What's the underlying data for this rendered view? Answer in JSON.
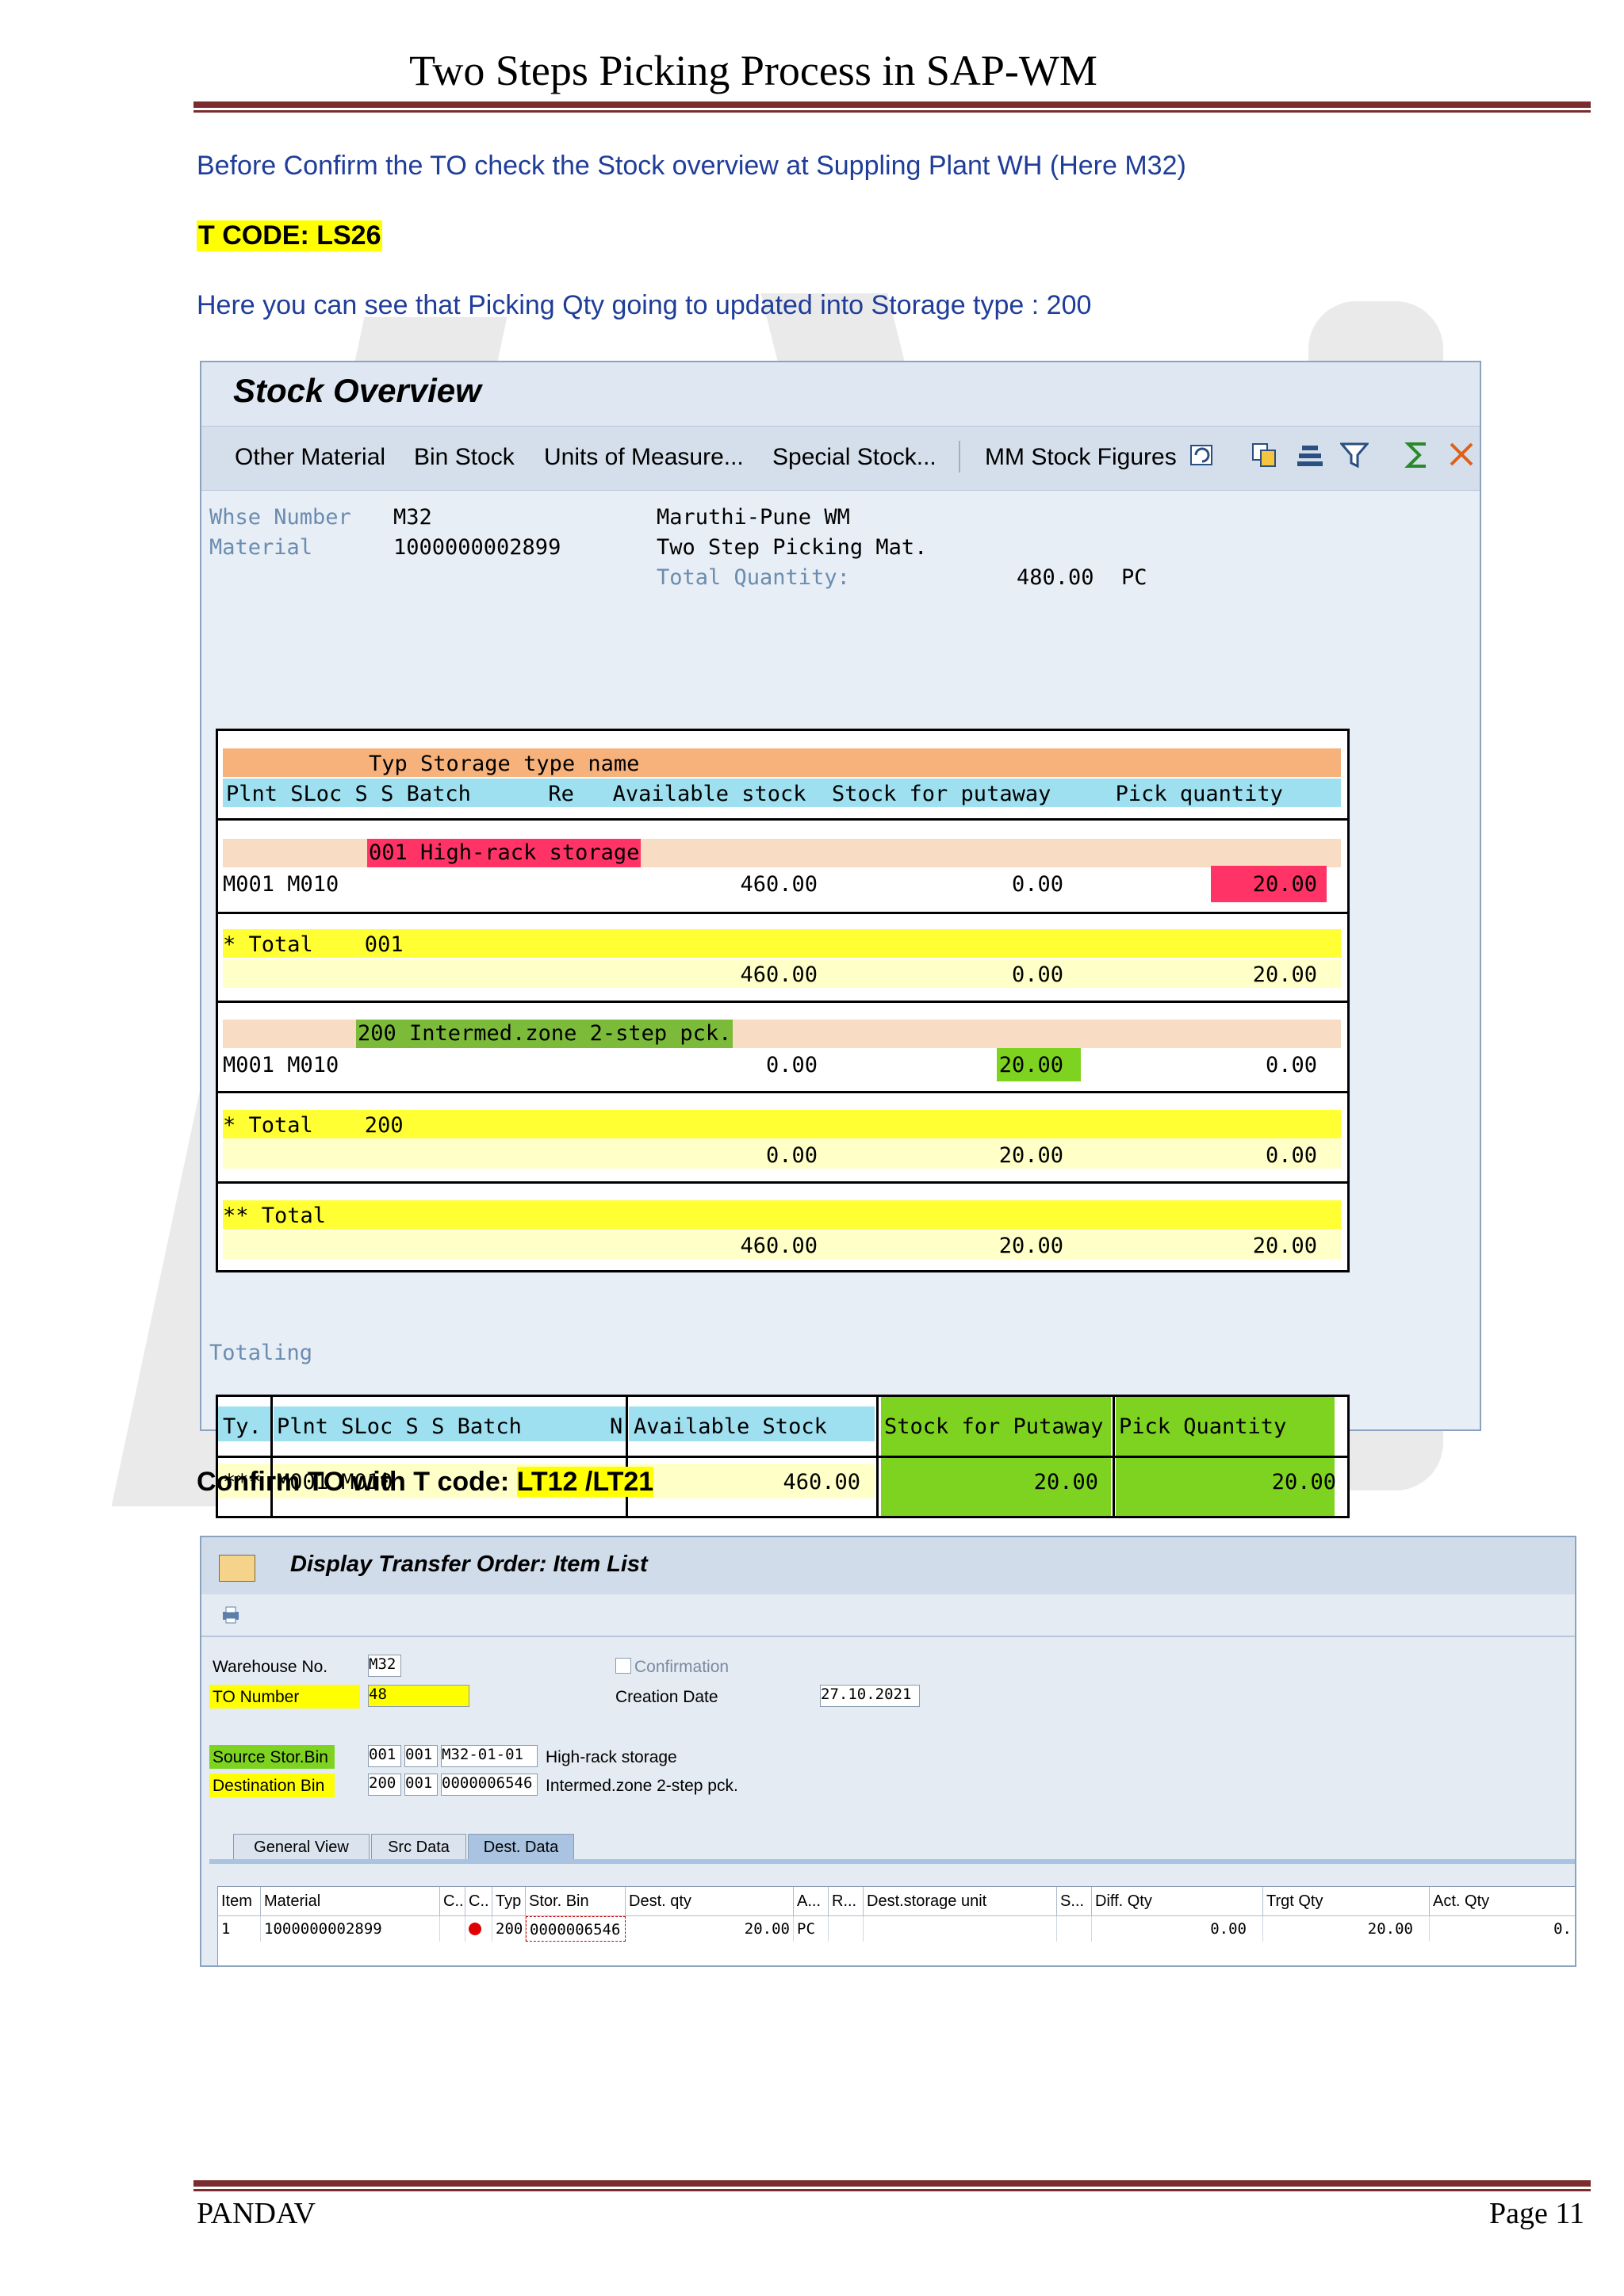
{
  "doc": {
    "title": "Two Steps Picking Process in SAP-WM",
    "intro": "Before Confirm the TO check the Stock overview at Suppling Plant WH (Here M32)",
    "tcode": "T CODE: LS26",
    "note": "Here you can see that Picking Qty going to updated into Storage type : 200",
    "confirm_prefix": "Confirm TO with T code: ",
    "confirm_codes": "LT12 /LT21"
  },
  "stock_overview": {
    "title": "Stock Overview",
    "toolbar": [
      "Other Material",
      "Bin Stock",
      "Units of Measure...",
      "Special Stock...",
      "MM Stock Figures"
    ],
    "whse_label": "Whse Number",
    "whse_value": "M32",
    "whse_desc": "Maruthi-Pune WM",
    "material_label": "Material",
    "material_value": "1000000002899",
    "material_desc": "Two Step Picking Mat.",
    "total_qty_label": "Total Quantity:",
    "total_qty_value": "480.00",
    "total_qty_unit": "PC",
    "header1": "Typ Storage type name",
    "header2": "Plnt SLoc S S Batch      Re   Available stock  Stock for putaway     Pick quantity",
    "rows": {
      "st001_name": "001 High-rack storage",
      "st001_plnt": "M001 M010",
      "st001_avail": "460.00",
      "st001_putaway": "0.00",
      "st001_pick": "20.00",
      "tot001_label": "* Total    001",
      "tot001_avail": "460.00",
      "tot001_putaway": "0.00",
      "tot001_pick": "20.00",
      "st200_name": "200 Intermed.zone 2-step pck.",
      "st200_plnt": "M001 M010",
      "st200_avail": "0.00",
      "st200_putaway": "20.00",
      "st200_pick": "0.00",
      "tot200_label": "* Total    200",
      "tot200_avail": "0.00",
      "tot200_putaway": "20.00",
      "tot200_pick": "0.00",
      "grand_label": "** Total",
      "grand_avail": "460.00",
      "grand_putaway": "20.00",
      "grand_pick": "20.00"
    },
    "totaling_label": "Totaling",
    "totaling": {
      "h_ty": "Ty.",
      "h_plnt": "Plnt SLoc S S Batch",
      "h_n": "N",
      "h_avail": "Available Stock",
      "h_putaway": "Stock for Putaway",
      "h_pick": "Pick Quantity",
      "r_ty": "***",
      "r_plnt": "M001 M010",
      "r_avail": "460.00",
      "r_putaway": "20.00",
      "r_pick": "20.00"
    }
  },
  "transfer_order": {
    "title": "Display Transfer Order: Item List",
    "warehouse_label": "Warehouse No.",
    "warehouse_value": "M32",
    "confirmation_label": "Confirmation",
    "to_number_label": "TO Number",
    "to_number_value": "48",
    "creation_date_label": "Creation Date",
    "creation_date_value": "27.10.2021",
    "source_label": "Source Stor.Bin",
    "source_typ": "001",
    "source_sec": "001",
    "source_bin": "M32-01-01",
    "source_desc": "High-rack storage",
    "dest_label": "Destination Bin",
    "dest_typ": "200",
    "dest_sec": "001",
    "dest_bin": "0000006546",
    "dest_desc": "Intermed.zone 2-step pck.",
    "tabs": [
      "General View",
      "Src Data",
      "Dest. Data"
    ],
    "columns": [
      "Item",
      "Material",
      "C..",
      "C..",
      "Typ",
      "Stor. Bin",
      "Dest. qty",
      "A...",
      "R...",
      "Dest.storage unit",
      "S...",
      "Diff. Qty",
      "Trgt Qty",
      "Act. Qty"
    ],
    "row": {
      "item": "1",
      "material": "1000000002899",
      "typ": "200",
      "bin": "0000006546",
      "dest_qty": "20.00",
      "uom": "PC",
      "diff_qty": "0.00",
      "trgt_qty": "20.00",
      "act_qty": "0."
    }
  },
  "footer": {
    "left": "PANDAV",
    "right": "Page 11"
  },
  "colors": {
    "highlight": "#ffff00",
    "pink": "#ff3366",
    "green": "#7ed321",
    "orange_band": "#f7b27b",
    "cyan_band": "#9fe0f0",
    "rule": "#7b2c2c"
  }
}
